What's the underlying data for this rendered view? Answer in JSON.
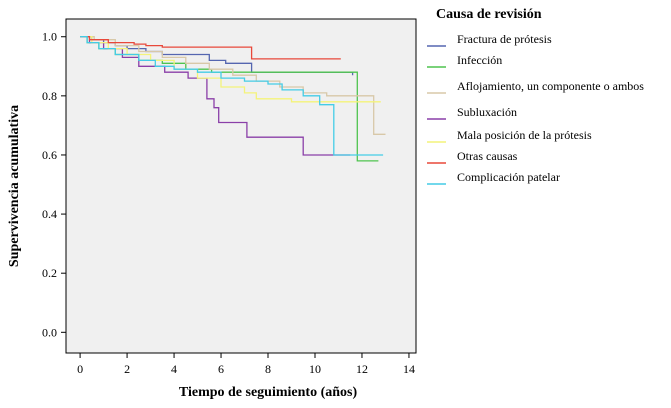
{
  "chart_data": {
    "type": "line",
    "subtype": "kaplan-meier step curves",
    "xlabel": "Tiempo de seguimiento (años)",
    "ylabel": "Supervivencia acumulativa",
    "xlim": [
      -0.6,
      14.3
    ],
    "ylim": [
      -0.07,
      1.06
    ],
    "xticks": [
      0,
      2,
      4,
      6,
      8,
      10,
      12,
      14
    ],
    "xtick_labels": [
      "0",
      "2",
      "4",
      "6",
      "8",
      "10",
      "12",
      "14"
    ],
    "yticks": [
      0.0,
      0.2,
      0.4,
      0.6,
      0.8,
      1.0
    ],
    "ytick_labels": [
      "0.0",
      "0.2",
      "0.4",
      "0.6",
      "0.8",
      "1.0"
    ],
    "legend_title": "Causa de revisión",
    "legend_position": "right",
    "series": [
      {
        "name": "Fractura de prótesis",
        "color": "#5566b0",
        "x": [
          0,
          0.5,
          1.0,
          1.5,
          2.0,
          2.8,
          3.5,
          5.5,
          6.2,
          7.3,
          11.6
        ],
        "y": [
          1.0,
          0.99,
          0.98,
          0.97,
          0.96,
          0.95,
          0.94,
          0.92,
          0.91,
          0.88,
          0.87
        ]
      },
      {
        "name": "Infección",
        "color": "#4fc44f",
        "x": [
          0,
          0.3,
          0.8,
          1.5,
          2.5,
          3.5,
          4.5,
          5.6,
          11.8,
          12.7
        ],
        "y": [
          1.0,
          0.98,
          0.96,
          0.94,
          0.92,
          0.91,
          0.89,
          0.88,
          0.58,
          0.58
        ]
      },
      {
        "name": "Aflojamiento, un componente o ambos",
        "color": "#d8c8a8",
        "x": [
          0,
          0.6,
          1.5,
          2.5,
          3.5,
          4.5,
          5.5,
          6.5,
          7.5,
          8.5,
          9.5,
          10.5,
          12.5,
          13.0
        ],
        "y": [
          1.0,
          0.99,
          0.97,
          0.95,
          0.93,
          0.91,
          0.89,
          0.87,
          0.85,
          0.83,
          0.81,
          0.8,
          0.67,
          0.67
        ]
      },
      {
        "name": "Subluxación",
        "color": "#8a3fa8",
        "x": [
          0,
          0.4,
          1.0,
          1.8,
          2.5,
          3.6,
          4.6,
          5.4,
          5.7,
          5.9,
          7.1,
          9.5,
          11.5
        ],
        "y": [
          1.0,
          0.98,
          0.96,
          0.93,
          0.9,
          0.88,
          0.86,
          0.79,
          0.76,
          0.71,
          0.66,
          0.6,
          0.6
        ]
      },
      {
        "name": "Mala posición de la prótesis",
        "color": "#f4f37a",
        "x": [
          0,
          0.5,
          1.2,
          2.0,
          3.0,
          4.0,
          5.0,
          6.0,
          7.0,
          7.5,
          9.0,
          12.8
        ],
        "y": [
          1.0,
          0.98,
          0.96,
          0.94,
          0.92,
          0.89,
          0.86,
          0.83,
          0.81,
          0.79,
          0.78,
          0.78
        ]
      },
      {
        "name": "Otras causas",
        "color": "#e8483a",
        "x": [
          0,
          0.4,
          1.2,
          2.3,
          2.8,
          3.5,
          7.3,
          11.1
        ],
        "y": [
          1.0,
          0.99,
          0.98,
          0.975,
          0.97,
          0.965,
          0.925,
          0.925
        ]
      },
      {
        "name": "Complicación patelar",
        "color": "#44cce6",
        "x": [
          0,
          0.3,
          0.8,
          1.5,
          2.5,
          3.2,
          4.0,
          5.0,
          6.0,
          7.0,
          8.0,
          8.6,
          9.5,
          10.2,
          10.8,
          12.9
        ],
        "y": [
          1.0,
          0.98,
          0.96,
          0.94,
          0.92,
          0.9,
          0.89,
          0.88,
          0.86,
          0.85,
          0.84,
          0.82,
          0.8,
          0.77,
          0.6,
          0.6
        ]
      }
    ]
  }
}
